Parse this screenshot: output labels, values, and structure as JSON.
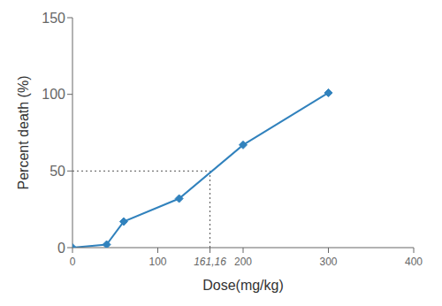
{
  "chart_data": {
    "type": "line",
    "x": [
      0,
      40,
      60,
      125,
      200,
      300
    ],
    "values": [
      0,
      2,
      17,
      32,
      67,
      101
    ],
    "xlabel": "Dose(mg/kg)",
    "ylabel": "Percent death (%)",
    "xlim": [
      0,
      400
    ],
    "ylim": [
      0,
      150
    ],
    "xticks": [
      0,
      100,
      {
        "value": 161.16,
        "label": "161,16"
      },
      200,
      300,
      400
    ],
    "yticks": [
      0,
      50,
      100,
      150
    ],
    "marker": "diamond",
    "ld50": {
      "x": 161.16,
      "y": 50
    }
  }
}
